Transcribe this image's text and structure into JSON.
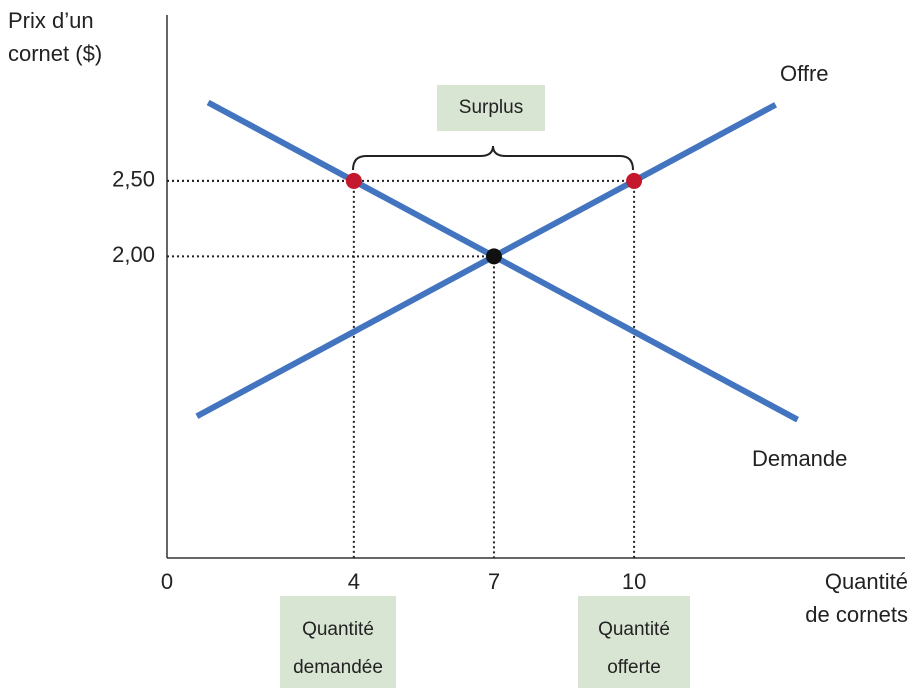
{
  "chart_data": {
    "type": "line",
    "ylabel": [
      "Prix d’un",
      "cornet ($)"
    ],
    "xlabel": [
      "Quantité",
      "de cornets"
    ],
    "xlim": [
      0,
      15.8
    ],
    "ylim": [
      0,
      3.6
    ],
    "xticks": [
      0,
      4,
      7,
      10
    ],
    "yticks": [
      {
        "value": 2.5,
        "label": "2,50"
      },
      {
        "value": 2,
        "label": "2,00"
      }
    ],
    "series": [
      {
        "name": "Offre",
        "color": "#4274c0",
        "x": [
          0.64,
          13.03
        ],
        "y": [
          0.94,
          3.005
        ]
      },
      {
        "name": "Demande",
        "color": "#4274c0",
        "x": [
          0.88,
          13.5
        ],
        "y": [
          3.02,
          0.917
        ]
      }
    ],
    "points": [
      {
        "x": 4,
        "y": 2.5,
        "color": "#c4182f"
      },
      {
        "x": 10,
        "y": 2.5,
        "color": "#c4182f"
      },
      {
        "x": 7,
        "y": 2,
        "color": "#111111"
      }
    ],
    "annotations": [
      {
        "text": [
          "Surplus"
        ]
      },
      {
        "text": [
          "Quantité",
          "demandée"
        ]
      },
      {
        "text": [
          "Quantité",
          "offerte"
        ]
      }
    ]
  }
}
